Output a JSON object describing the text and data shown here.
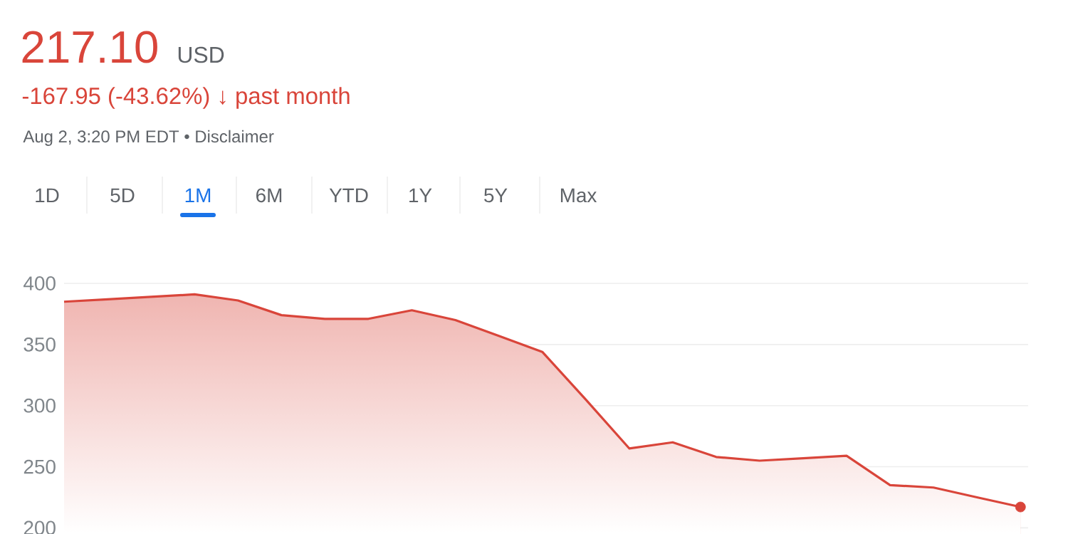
{
  "chart_data": {
    "type": "area",
    "title": "217.10",
    "subtitle": "USD",
    "annotations": [
      "-167.95 (-43.62%) ↓ past month",
      "Aug 2, 3:20 PM EDT • Disclaimer",
      "1D",
      "5D",
      "1M",
      "6M",
      "YTD",
      "1Y",
      "5Y",
      "Max"
    ],
    "categories": [
      null,
      null,
      null,
      null,
      null,
      null,
      null,
      null,
      null,
      null,
      null,
      null,
      null,
      null,
      null,
      null,
      null,
      null,
      null,
      null,
      null,
      null,
      null
    ],
    "series": [
      {
        "color": "#d9453a",
        "values": [
          385,
          387,
          389,
          391,
          386,
          374,
          371,
          371,
          378,
          370,
          357,
          344,
          305,
          265,
          270,
          258,
          255,
          257,
          259,
          235,
          233,
          225,
          217.1
        ]
      },
      {
        "type": "scatter",
        "color": "#d9453a",
        "values": [
          null,
          null,
          null,
          null,
          null,
          null,
          null,
          null,
          null,
          null,
          null,
          null,
          null,
          null,
          null,
          null,
          null,
          null,
          null,
          null,
          null,
          null,
          217.1
        ]
      }
    ],
    "ylim": [
      195,
      400
    ],
    "yticks": [
      200,
      250,
      300,
      350,
      400
    ],
    "grid": "y",
    "tick_labels": "y"
  }
}
